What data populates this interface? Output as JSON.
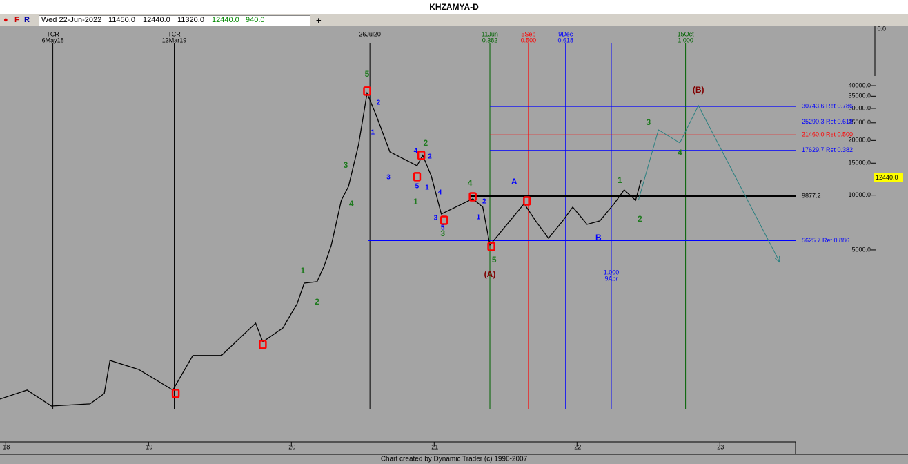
{
  "header": {
    "title": "KHZAMYA-D",
    "buttons": [
      "F",
      "R"
    ],
    "date": "Wed 22-Jun-2022",
    "open": "11450.0",
    "high": "12440.0",
    "low": "11320.0",
    "close": "12440.0",
    "change": "940.0",
    "add": "+"
  },
  "chart_data": {
    "type": "line",
    "log_scale": true,
    "series": [
      {
        "name": "KHZAMYA-D",
        "color": "#000000",
        "x": [
          17.96,
          18.15,
          18.32,
          18.59,
          18.69,
          18.73,
          18.93,
          19.17,
          19.31,
          19.51,
          19.75,
          19.8,
          19.94,
          20.04,
          20.09,
          20.18,
          20.23,
          20.28,
          20.35,
          20.4,
          20.47,
          20.53,
          20.59,
          20.69,
          20.88,
          20.92,
          20.98,
          21.05,
          21.15,
          21.27,
          21.34,
          21.39,
          21.49,
          21.63,
          21.71,
          21.8,
          21.9,
          21.97,
          22.07,
          22.16,
          22.26,
          22.33,
          22.41,
          22.45
        ],
        "values": [
          757,
          848,
          693,
          712,
          812,
          1234,
          1102,
          848,
          1314,
          1314,
          1979,
          1563,
          1862,
          2528,
          3286,
          3345,
          4089,
          5315,
          9380,
          11170,
          18880,
          36360,
          27980,
          17300,
          14520,
          16570,
          12740,
          7880,
          8600,
          9550,
          8600,
          5315,
          6615,
          8980,
          7220,
          5800,
          7220,
          8600,
          6910,
          7220,
          8980,
          10690,
          9380,
          12190
        ]
      }
    ],
    "xlim": [
      17.96,
      23.53
    ],
    "xticks": [
      18,
      19,
      20,
      21,
      22,
      23
    ],
    "ylim": [
      440,
      85600
    ],
    "yticks": [
      {
        "value": 5000,
        "label": "5000.0"
      },
      {
        "value": 10000,
        "label": "10000.0"
      },
      {
        "value": 15000,
        "label": "15000.0"
      },
      {
        "value": 20000,
        "label": "20000.0"
      },
      {
        "value": 25000,
        "label": "25000.0"
      },
      {
        "value": 30000,
        "label": "30000.0"
      },
      {
        "value": 35000,
        "label": "35000.0"
      },
      {
        "value": 40000,
        "label": "40000.0"
      }
    ],
    "top_label": "0.0",
    "last": {
      "value": 12440,
      "label": "12440.0"
    },
    "levels": [
      {
        "value": 30743.6,
        "label": "30743.6 Ret 0.786",
        "from": 21.39,
        "color": "#0000ff"
      },
      {
        "value": 25290.3,
        "label": "25290.3 Ret 0.618",
        "from": 21.39,
        "color": "#0000ff"
      },
      {
        "value": 21460.0,
        "label": "21460.0 Ret 0.500",
        "from": 21.39,
        "color": "#ff0000"
      },
      {
        "value": 17629.7,
        "label": "17629.7 Ret 0.382",
        "from": 21.39,
        "color": "#0000ff"
      },
      {
        "value": 9877.2,
        "label": "9877.2",
        "from": 21.25,
        "color": "#000000"
      },
      {
        "value": 5625.7,
        "label": "5625.7 Ret 0.886",
        "from": 20.54,
        "color": "#0000ff"
      }
    ],
    "verticals": [
      {
        "x": 18.33,
        "labels": [
          "TCR",
          "6May18"
        ],
        "color": "#000000"
      },
      {
        "x": 19.18,
        "labels": [
          "TCR",
          "13Mar19"
        ],
        "color": "#000000"
      },
      {
        "x": 20.55,
        "labels": [
          "26Jul20"
        ],
        "color": "#000000"
      },
      {
        "x": 21.39,
        "labels": [
          "11Jun",
          "0.382"
        ],
        "color": "#006400"
      },
      {
        "x": 21.66,
        "labels": [
          "5Sep",
          "0.500"
        ],
        "color": "#ff0000"
      },
      {
        "x": 21.92,
        "labels": [
          "9Dec",
          "0.618"
        ],
        "color": "#0000ff"
      },
      {
        "x": 22.24,
        "labels": [
          "1.000",
          "9Apr"
        ],
        "color": "#0000ff",
        "label_at": "bottom"
      },
      {
        "x": 22.76,
        "labels": [
          "15Oct",
          "1.000"
        ],
        "color": "#006400"
      }
    ],
    "pivots": {
      "color": "#ff0000",
      "x": [
        20.53,
        20.91,
        20.88,
        21.07,
        21.27,
        21.4,
        21.65,
        19.19,
        19.8
      ],
      "y": [
        37370,
        16570,
        12630,
        7280,
        9800,
        5220,
        9300,
        812,
        1510
      ]
    },
    "projection": {
      "color": "#2a8080",
      "x": [
        22.43,
        22.57,
        22.72,
        22.85,
        23.42
      ],
      "y": [
        9380,
        22880,
        19380,
        31080,
        4275
      ]
    },
    "annotations": [
      {
        "text": "5",
        "x": 20.53,
        "y": 46050,
        "color": "#1f7a1f"
      },
      {
        "text": "3",
        "x": 20.38,
        "y": 14520,
        "color": "#1f7a1f"
      },
      {
        "text": "4",
        "x": 20.42,
        "y": 8900,
        "color": "#1f7a1f"
      },
      {
        "text": "1",
        "x": 20.08,
        "y": 3810,
        "color": "#1f7a1f"
      },
      {
        "text": "2",
        "x": 20.18,
        "y": 2575,
        "color": "#1f7a1f"
      },
      {
        "text": "2",
        "x": 20.94,
        "y": 19210,
        "color": "#1f7a1f"
      },
      {
        "text": "1",
        "x": 20.87,
        "y": 9140,
        "color": "#1f7a1f"
      },
      {
        "text": "3",
        "x": 21.06,
        "y": 6110,
        "color": "#1f7a1f"
      },
      {
        "text": "4",
        "x": 21.25,
        "y": 11570,
        "color": "#1f7a1f"
      },
      {
        "text": "5",
        "x": 21.42,
        "y": 4385,
        "color": "#1f7a1f"
      },
      {
        "text": "3",
        "x": 22.5,
        "y": 24970,
        "color": "#1f7a1f"
      },
      {
        "text": "4",
        "x": 22.72,
        "y": 17000,
        "color": "#1f7a1f"
      },
      {
        "text": "1",
        "x": 22.3,
        "y": 11980,
        "color": "#1f7a1f"
      },
      {
        "text": "2",
        "x": 22.44,
        "y": 7345,
        "color": "#1f7a1f"
      },
      {
        "text": "2",
        "x": 20.61,
        "y": 32180,
        "color": "#0000ff"
      },
      {
        "text": "1",
        "x": 20.57,
        "y": 22090,
        "color": "#0000ff"
      },
      {
        "text": "3",
        "x": 20.68,
        "y": 12520,
        "color": "#0000ff"
      },
      {
        "text": "4",
        "x": 20.87,
        "y": 17450,
        "color": "#0000ff"
      },
      {
        "text": "2",
        "x": 20.97,
        "y": 16270,
        "color": "#0000ff"
      },
      {
        "text": "5",
        "x": 20.88,
        "y": 11170,
        "color": "#0000ff"
      },
      {
        "text": "1",
        "x": 20.95,
        "y": 10980,
        "color": "#0000ff"
      },
      {
        "text": "4",
        "x": 21.04,
        "y": 10330,
        "color": "#0000ff"
      },
      {
        "text": "3",
        "x": 21.01,
        "y": 7475,
        "color": "#0000ff"
      },
      {
        "text": "5",
        "x": 21.06,
        "y": 6615,
        "color": "#0000ff"
      },
      {
        "text": "1",
        "x": 21.31,
        "y": 7540,
        "color": "#0000ff"
      },
      {
        "text": "2",
        "x": 21.35,
        "y": 9220,
        "color": "#0000ff"
      },
      {
        "text": "A",
        "x": 21.56,
        "y": 11780,
        "color": "#0000ff"
      },
      {
        "text": "B",
        "x": 22.15,
        "y": 5800,
        "color": "#0000ff"
      },
      {
        "text": "(A)",
        "x": 21.39,
        "y": 3650,
        "color": "#800000"
      },
      {
        "text": "(B)",
        "x": 22.85,
        "y": 37660,
        "color": "#800000"
      }
    ],
    "credit": "Chart created by Dynamic Trader  (c) 1996-2007"
  }
}
